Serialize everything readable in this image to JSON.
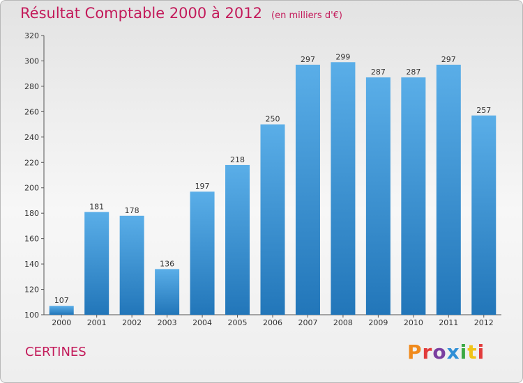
{
  "header": {
    "title": "Résultat Comptable 2000 à 2012",
    "subtitle": "(en milliers d'€)"
  },
  "footer": {
    "commune": "CERTINES",
    "logo_text": "Proxiti",
    "logo_colors": [
      "#f08a1c",
      "#e23b3b",
      "#7a3fa0",
      "#2f8fd6",
      "#3aa843",
      "#f0c419",
      "#e23b3b"
    ]
  },
  "colors": {
    "title": "#c31a5a",
    "bar_top": "#5aaee8",
    "bar_bottom": "#2276b9"
  },
  "chart_data": {
    "type": "bar",
    "categories": [
      "2000",
      "2001",
      "2002",
      "2003",
      "2004",
      "2005",
      "2006",
      "2007",
      "2008",
      "2009",
      "2010",
      "2011",
      "2012"
    ],
    "values": [
      107,
      181,
      178,
      136,
      197,
      218,
      250,
      297,
      299,
      287,
      287,
      297,
      257
    ],
    "ylim": [
      100,
      320
    ],
    "yticks": [
      100,
      120,
      140,
      160,
      180,
      200,
      220,
      240,
      260,
      280,
      300,
      320
    ],
    "xlabel": "",
    "ylabel": "",
    "grid": false,
    "data_labels": true
  }
}
